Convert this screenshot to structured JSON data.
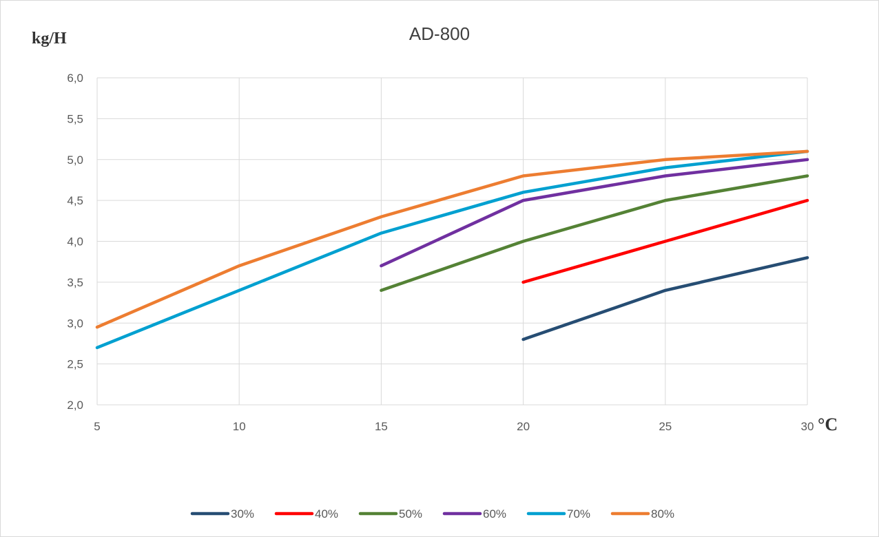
{
  "chart_data": {
    "type": "line",
    "title": "AD-800",
    "ylabel": "kg/H",
    "xlabel": "°C",
    "x": [
      5,
      10,
      15,
      20,
      25,
      30
    ],
    "x_tick_labels": [
      "5",
      "10",
      "15",
      "20",
      "25",
      "30"
    ],
    "y_tick_labels": [
      "2,0",
      "2,5",
      "3,0",
      "3,5",
      "4,0",
      "4,5",
      "5,0",
      "5,5",
      "6,0"
    ],
    "xlim": [
      5,
      30
    ],
    "ylim": [
      2.0,
      6.0
    ],
    "grid": true,
    "legend_position": "bottom",
    "series": [
      {
        "name": "30%",
        "color": "#264d73",
        "values": [
          null,
          null,
          null,
          2.8,
          3.4,
          3.8
        ]
      },
      {
        "name": "40%",
        "color": "#ff0000",
        "values": [
          null,
          null,
          null,
          3.5,
          4.0,
          4.5
        ]
      },
      {
        "name": "50%",
        "color": "#548235",
        "values": [
          null,
          null,
          3.4,
          4.0,
          4.5,
          4.8
        ]
      },
      {
        "name": "60%",
        "color": "#7030a0",
        "values": [
          null,
          null,
          3.7,
          4.5,
          4.8,
          5.0
        ]
      },
      {
        "name": "70%",
        "color": "#00a0d0",
        "values": [
          2.7,
          3.4,
          4.1,
          4.6,
          4.9,
          5.1
        ]
      },
      {
        "name": "80%",
        "color": "#ed7d31",
        "values": [
          2.95,
          3.7,
          4.3,
          4.8,
          5.0,
          5.1
        ]
      }
    ]
  }
}
